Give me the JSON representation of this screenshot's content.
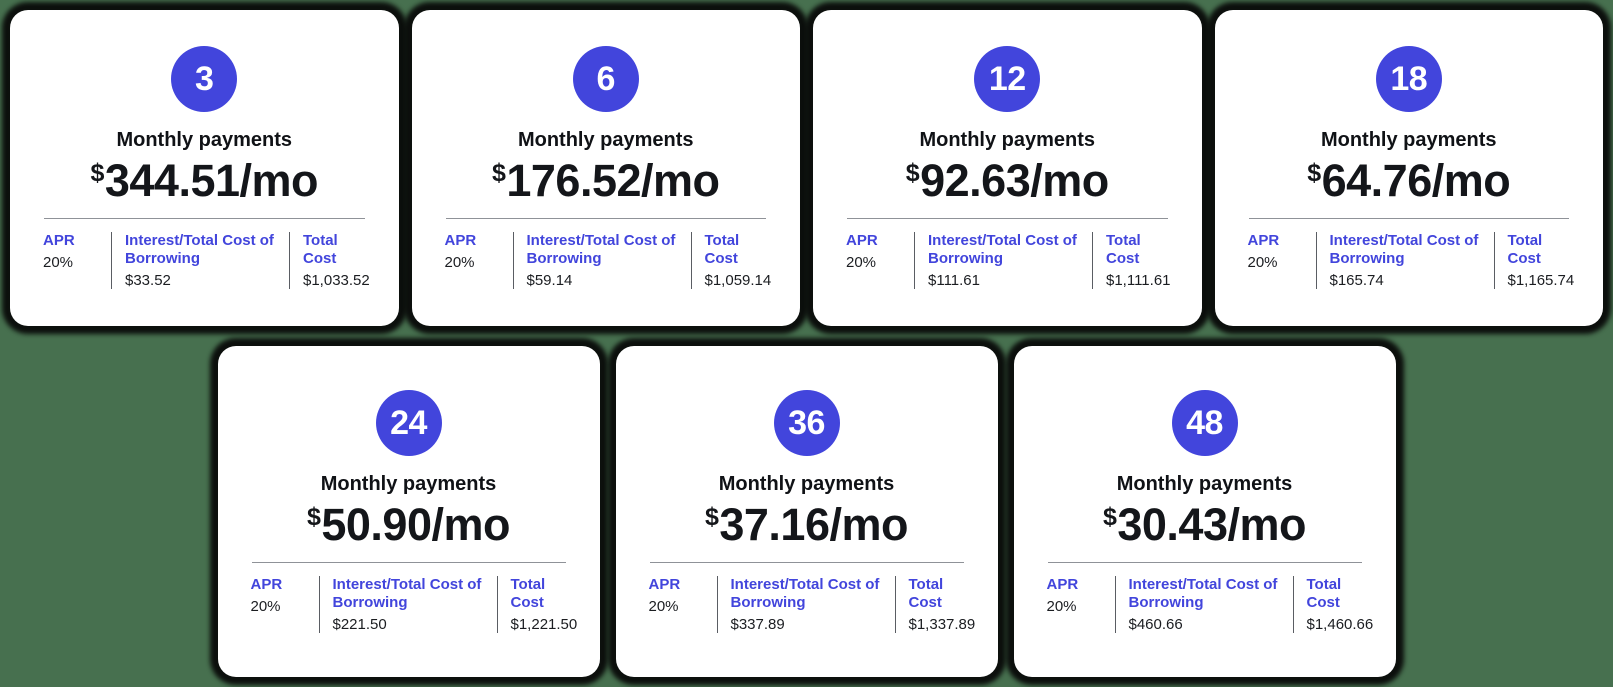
{
  "colors": {
    "background": "#47704F",
    "accent_blue": "#4245DC",
    "card_background": "#FFFFFF",
    "text_dark": "#14161A"
  },
  "labels": {
    "monthly_payments": "Monthly payments",
    "currency": "$",
    "per_month_suffix": "/mo",
    "apr": "APR",
    "interest": "Interest/Total Cost of Borrowing",
    "total_cost": "Total Cost"
  },
  "cards": [
    {
      "months": "3",
      "amount": "344.51",
      "apr": "20%",
      "interest": "$33.52",
      "total": "$1,033.52"
    },
    {
      "months": "6",
      "amount": "176.52",
      "apr": "20%",
      "interest": "$59.14",
      "total": "$1,059.14"
    },
    {
      "months": "12",
      "amount": "92.63",
      "apr": "20%",
      "interest": "$111.61",
      "total": "$1,111.61"
    },
    {
      "months": "18",
      "amount": "64.76",
      "apr": "20%",
      "interest": "$165.74",
      "total": "$1,165.74"
    },
    {
      "months": "24",
      "amount": "50.90",
      "apr": "20%",
      "interest": "$221.50",
      "total": "$1,221.50"
    },
    {
      "months": "36",
      "amount": "37.16",
      "apr": "20%",
      "interest": "$337.89",
      "total": "$1,337.89"
    },
    {
      "months": "48",
      "amount": "30.43",
      "apr": "20%",
      "interest": "$460.66",
      "total": "$1,460.66"
    }
  ]
}
